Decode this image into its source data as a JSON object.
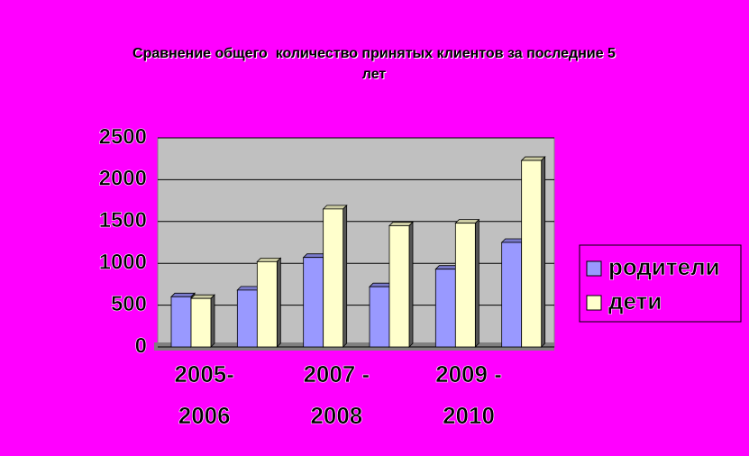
{
  "chart_data": {
    "type": "bar",
    "title": "Сравнение общего  количество принятых клиентов за последние 5 лет",
    "categories": [
      "2005-2006",
      null,
      "2007 -2008",
      null,
      "2009 -2010",
      null
    ],
    "series": [
      {
        "name": "родители",
        "color": "#9999ff",
        "values": [
          600,
          680,
          1070,
          720,
          930,
          1250
        ]
      },
      {
        "name": "дети",
        "color": "#ffffcc",
        "values": [
          580,
          1020,
          1650,
          1450,
          1480,
          2230
        ]
      }
    ],
    "ylim": [
      0,
      2500
    ],
    "yticks": [
      0,
      500,
      1000,
      1500,
      2000,
      2500
    ],
    "grid": true,
    "legend": "right"
  }
}
